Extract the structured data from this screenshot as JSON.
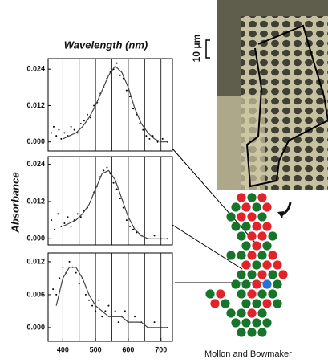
{
  "figure": {
    "x_label": "Wavelength (nm)",
    "y_label": "Absorbance",
    "scale_label": "10 μm",
    "credit": "Mollon and Bowmaker"
  },
  "chart_data": [
    {
      "type": "line",
      "x": [
        400,
        420,
        440,
        460,
        480,
        500,
        520,
        540,
        560,
        580,
        600,
        620,
        640,
        660,
        680,
        700,
        720
      ],
      "values": [
        0.001,
        0.002,
        0.003,
        0.005,
        0.008,
        0.012,
        0.017,
        0.022,
        0.025,
        0.023,
        0.018,
        0.011,
        0.006,
        0.003,
        0.001,
        0,
        0
      ],
      "points_x": [
        365,
        372,
        380,
        388,
        395,
        405,
        415,
        425,
        435,
        445,
        455,
        465,
        475,
        485,
        495,
        505,
        515,
        525,
        535,
        545,
        555,
        565,
        575,
        585,
        595,
        605,
        615,
        625,
        635,
        645,
        655,
        665,
        675,
        690,
        705,
        720
      ],
      "points": [
        0.003,
        0.005,
        0.002,
        0.004,
        0.001,
        0.003,
        0.002,
        0.005,
        0.004,
        0.003,
        0.006,
        0.007,
        0.009,
        0.008,
        0.012,
        0.013,
        0.016,
        0.018,
        0.021,
        0.023,
        0.024,
        0.026,
        0.022,
        0.021,
        0.017,
        0.015,
        0.011,
        0.009,
        0.006,
        0.004,
        0.002,
        0.001,
        0.002,
        0,
        0.001,
        0
      ],
      "xlim": [
        355,
        735
      ],
      "ylim": [
        -0.003,
        0.0275
      ],
      "yticks": [
        {
          "value": 0,
          "label": "0.000"
        },
        0.012,
        0.024
      ],
      "grid_x": [
        400,
        450,
        500,
        550,
        600,
        650,
        700
      ]
    },
    {
      "type": "line",
      "x": [
        400,
        420,
        440,
        460,
        480,
        500,
        520,
        540,
        560,
        580,
        600,
        620,
        640,
        660,
        680,
        700,
        720
      ],
      "values": [
        0.004,
        0.005,
        0.006,
        0.008,
        0.011,
        0.016,
        0.021,
        0.022,
        0.019,
        0.013,
        0.007,
        0.003,
        0.001,
        0,
        0,
        0,
        0
      ],
      "points_x": [
        365,
        375,
        385,
        395,
        405,
        415,
        425,
        435,
        445,
        455,
        465,
        475,
        485,
        495,
        505,
        515,
        525,
        535,
        545,
        555,
        565,
        575,
        585,
        595,
        605,
        615,
        625,
        640,
        660,
        680,
        700,
        720
      ],
      "points": [
        0.006,
        0.003,
        0.008,
        0.004,
        0.005,
        0.007,
        0.004,
        0.006,
        0.008,
        0.007,
        0.009,
        0.01,
        0.012,
        0.015,
        0.017,
        0.02,
        0.022,
        0.023,
        0.021,
        0.018,
        0.016,
        0.013,
        0.01,
        0.006,
        0.004,
        0.003,
        0.002,
        0.001,
        0,
        0.001,
        0,
        0
      ],
      "xlim": [
        355,
        735
      ],
      "ylim": [
        -0.002,
        0.0265
      ],
      "yticks": [
        {
          "value": 0,
          "label": "0.000"
        },
        0.012,
        0.024
      ],
      "grid_x": [
        400,
        450,
        500,
        550,
        600,
        650,
        700
      ]
    },
    {
      "type": "line",
      "x": [
        380,
        400,
        420,
        440,
        460,
        480,
        500,
        520,
        540,
        560,
        580,
        600,
        620,
        640,
        660,
        680,
        700,
        720
      ],
      "values": [
        0.004,
        0.009,
        0.011,
        0.011,
        0.009,
        0.006,
        0.004,
        0.003,
        0.002,
        0.002,
        0.002,
        0.001,
        0.001,
        0.001,
        0,
        0,
        0,
        0
      ],
      "points_x": [
        370,
        380,
        390,
        400,
        410,
        420,
        430,
        440,
        450,
        460,
        470,
        480,
        490,
        500,
        510,
        520,
        530,
        540,
        550,
        560,
        570,
        580,
        590,
        600,
        620,
        640,
        660,
        680,
        700,
        720
      ],
      "points": [
        0.007,
        0.006,
        0.009,
        0.011,
        0.01,
        0.012,
        0.011,
        0.01,
        0.008,
        0.009,
        0.006,
        0.005,
        0.004,
        0.003,
        0.005,
        0.002,
        0.003,
        0.004,
        0.002,
        0.003,
        0.001,
        0.002,
        0.003,
        0.001,
        0.002,
        0.001,
        0,
        0.001,
        0,
        0
      ],
      "xlim": [
        355,
        735
      ],
      "ylim": [
        -0.0025,
        0.0136
      ],
      "yticks": [
        {
          "value": 0,
          "label": "0.000"
        },
        0.006,
        0.012
      ],
      "xticks": [
        400,
        500,
        600,
        700
      ],
      "grid_x": [
        400,
        450,
        500,
        550,
        600,
        650,
        700
      ]
    }
  ]
}
